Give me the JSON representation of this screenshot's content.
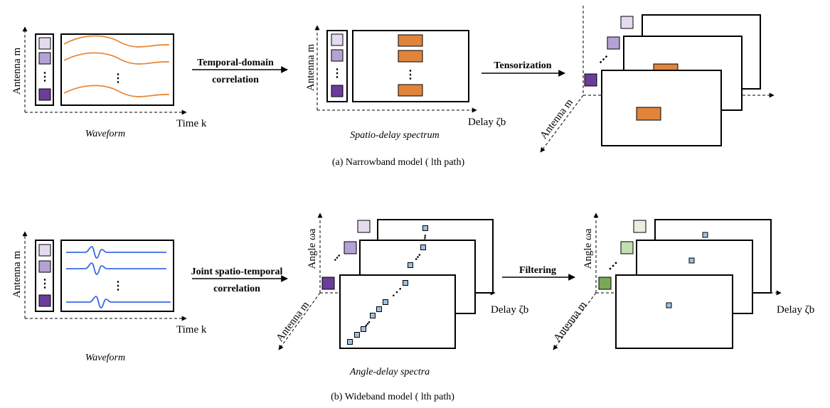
{
  "colors": {
    "purple_light": "#e4dbef",
    "purple_mid": "#b5a2d4",
    "purple_dark": "#6a3d9a",
    "green_light": "#e7f0dc",
    "green_mid": "#c5deb2",
    "green_dark": "#7aa956",
    "orange": "#e0843c",
    "wave_orange": "#e8893a",
    "wave_blue": "#3d6be0",
    "point_blue": "#9dbfe0"
  },
  "narrowband": {
    "waveform": {
      "ylabel": "Antenna m",
      "xlabel": "Time k",
      "caption": "Waveform",
      "dots": "⋮"
    },
    "step1": {
      "line1": "Temporal-domain",
      "line2": "correlation"
    },
    "spectrum": {
      "ylabel": "Antenna m",
      "xlabel": "Delay ζb",
      "caption": "Spatio-delay spectrum",
      "dots": "⋮"
    },
    "step2": {
      "label": "Tensorization"
    },
    "tensor": {
      "axis_label": "Antenna m",
      "dots": "⋮"
    },
    "caption": "(a) Narrowband model ( lth path)"
  },
  "wideband": {
    "waveform": {
      "ylabel": "Antenna m",
      "xlabel": "Time k",
      "caption": "Waveform",
      "dots": "⋮"
    },
    "step1": {
      "line1": "Joint spatio-temporal",
      "line2": "correlation"
    },
    "spectra": {
      "ylabel": "Angle ωa",
      "depth_label": "Antenna m",
      "xlabel": "Delay ζb",
      "caption": "Angle-delay spectra"
    },
    "step2": {
      "label": "Filtering"
    },
    "filtered": {
      "ylabel": "Angle ωa",
      "depth_label": "Antenna m",
      "xlabel": "Delay ζb"
    },
    "caption": "(b) Wideband model ( lth path)"
  }
}
